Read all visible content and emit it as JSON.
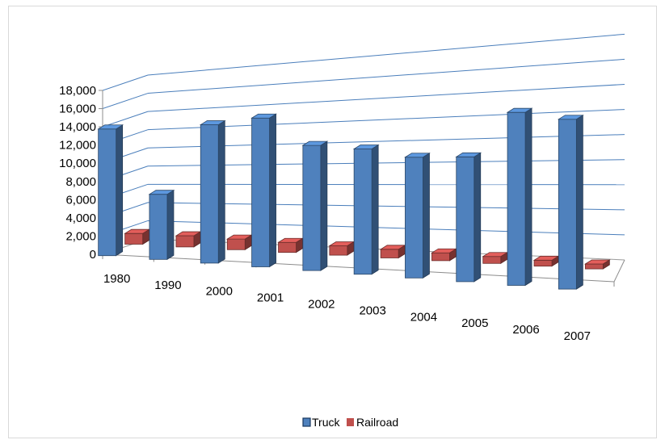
{
  "chart_data": {
    "type": "bar",
    "view": "3d-perspective",
    "categories": [
      "1980",
      "1990",
      "2000",
      "2001",
      "2002",
      "2003",
      "2004",
      "2005",
      "2006",
      "2007"
    ],
    "series": [
      {
        "name": "Truck",
        "color": "#4F81BD",
        "values": [
          14200,
          7000,
          14300,
          14800,
          12000,
          11600,
          10800,
          10800,
          14500,
          13800
        ]
      },
      {
        "name": "Railroad",
        "color": "#C0504D",
        "values": [
          1200,
          1200,
          1100,
          1000,
          900,
          800,
          700,
          600,
          500,
          400
        ]
      }
    ],
    "ylim": [
      0,
      18000
    ],
    "yticks": [
      "0",
      "2,000",
      "4,000",
      "6,000",
      "8,000",
      "10,000",
      "12,000",
      "14,000",
      "16,000",
      "18,000"
    ],
    "grid": true,
    "legend": "bottom",
    "title": "",
    "xlabel": "",
    "ylabel": ""
  }
}
